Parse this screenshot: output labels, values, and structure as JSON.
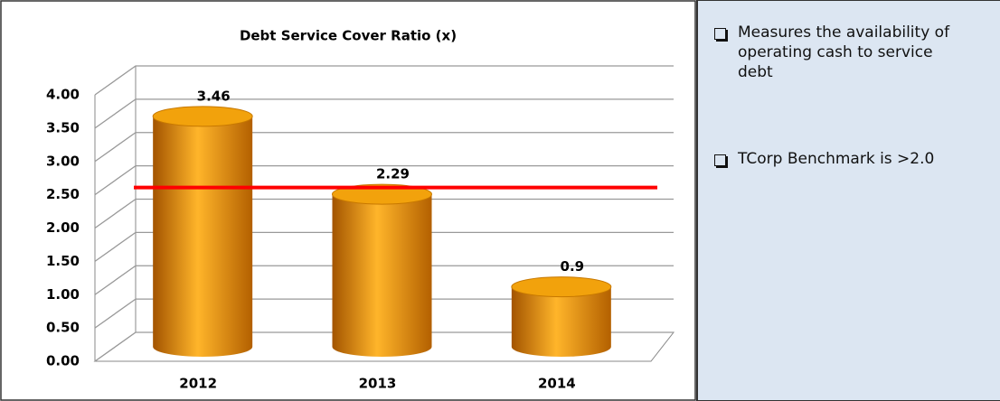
{
  "chart_data": {
    "type": "bar",
    "title": "Debt Service Cover Ratio (x)",
    "categories": [
      "2012",
      "2013",
      "2014"
    ],
    "values": [
      3.46,
      2.29,
      0.9
    ],
    "color": "#f39c12",
    "ylim": [
      0,
      4
    ],
    "yticks": [
      {
        "value": 0,
        "label": "0.00"
      },
      {
        "value": 0.5,
        "label": "0.50"
      },
      {
        "value": 1,
        "label": "1.00"
      },
      {
        "value": 1.5,
        "label": "1.50"
      },
      {
        "value": 2,
        "label": "2.00"
      },
      {
        "value": 2.5,
        "label": "2.50"
      },
      {
        "value": 3,
        "label": "3.00"
      },
      {
        "value": 3.5,
        "label": "3.50"
      },
      {
        "value": 4,
        "label": "4.00"
      }
    ],
    "grid": true,
    "reference_line": {
      "value": 2.5,
      "color": "#ff0000"
    }
  },
  "notes": [
    "Measures the availability of operating cash to service debt",
    "TCorp Benchmark is >2.0"
  ]
}
